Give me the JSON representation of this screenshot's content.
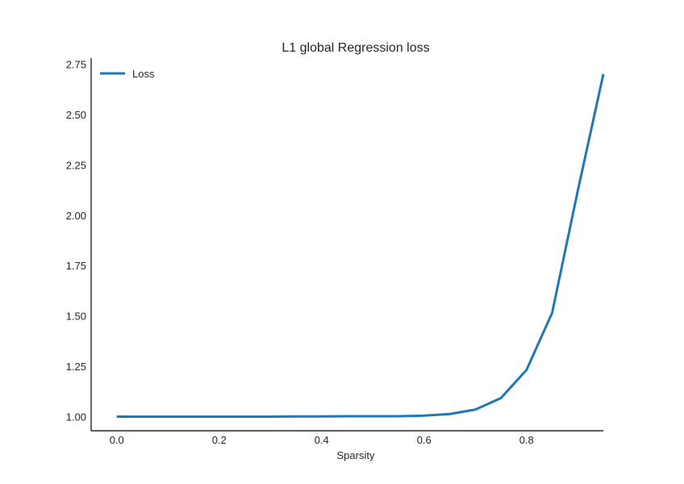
{
  "chart_data": {
    "type": "line",
    "title": "L1 global Regression loss",
    "xlabel": "Sparsity",
    "ylabel": "",
    "xlim": [
      -0.05,
      0.95
    ],
    "ylim": [
      0.93,
      2.78
    ],
    "x_ticks": [
      0.0,
      0.2,
      0.4,
      0.6,
      0.8
    ],
    "x_tick_labels": [
      "0.0",
      "0.2",
      "0.4",
      "0.6",
      "0.8"
    ],
    "y_ticks": [
      1.0,
      1.25,
      1.5,
      1.75,
      2.0,
      2.25,
      2.5,
      2.75
    ],
    "y_tick_labels": [
      "1.00",
      "1.25",
      "1.50",
      "1.75",
      "2.00",
      "2.25",
      "2.50",
      "2.75"
    ],
    "grid": false,
    "legend_position": "top-left",
    "series": [
      {
        "name": "Loss",
        "color": "#1f77b4",
        "x": [
          0.0,
          0.05,
          0.1,
          0.15,
          0.2,
          0.25,
          0.3,
          0.35,
          0.4,
          0.45,
          0.5,
          0.55,
          0.6,
          0.65,
          0.7,
          0.75,
          0.8,
          0.85,
          0.9,
          0.95
        ],
        "y": [
          1.0,
          1.0,
          1.0,
          1.0,
          1.0,
          1.0,
          1.0,
          1.001,
          1.001,
          1.002,
          1.002,
          1.002,
          1.005,
          1.013,
          1.035,
          1.092,
          1.232,
          1.515,
          2.12,
          2.7
        ]
      }
    ]
  }
}
